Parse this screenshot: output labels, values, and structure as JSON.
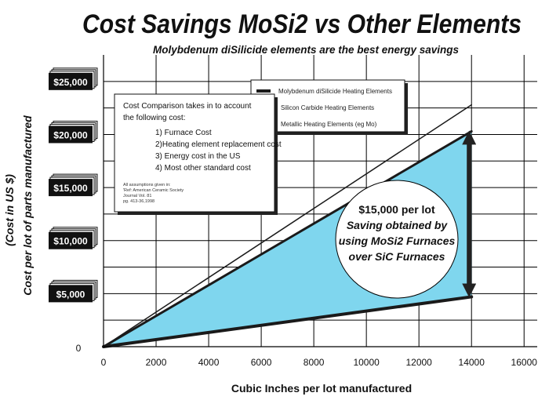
{
  "chart_data": {
    "type": "line",
    "title": "Cost Savings MoSi2 vs Other Elements",
    "subtitle": "Molybdenum diSilicide elements are the best energy savings",
    "xlabel": "Cubic Inches per lot manufactured",
    "ylabel_lines": [
      "(Cost in US $)",
      "Cost per lot of parts manufactured"
    ],
    "xlim": [
      0,
      16500
    ],
    "ylim": [
      0,
      27500
    ],
    "x_ticks": [
      0,
      2000,
      4000,
      6000,
      8000,
      10000,
      12000,
      14000,
      16000
    ],
    "x_tick_labels": [
      "0",
      "2000",
      "4000",
      "6000",
      "8000",
      "10000",
      "12000",
      "14000",
      "16000"
    ],
    "y_ticks": [
      0,
      5000,
      10000,
      15000,
      20000,
      25000
    ],
    "y_tick_labels": [
      "0",
      "$5,000",
      "$10,000",
      "$15,000",
      "$20,000",
      "$25,000"
    ],
    "grid": true,
    "legend_position": "top-right",
    "series": [
      {
        "name": "Molybdenum diSilicide Heating Elements",
        "x": [
          0,
          14000
        ],
        "y": [
          0,
          4700
        ],
        "stroke_width": 4
      },
      {
        "name": "Silicon Carbide Heating Elements",
        "x": [
          0,
          14000
        ],
        "y": [
          0,
          20300
        ],
        "stroke_width": 3
      },
      {
        "name": "Metallic Heating Elements (eg Mo)",
        "x": [
          0,
          14000
        ],
        "y": [
          0,
          22800
        ],
        "stroke_width": 1.5
      }
    ],
    "shaded_region_color": "#7fd6ee",
    "savings_callout": [
      "$15,000 per lot",
      "Saving obtained by",
      "using MoSi2 Furnaces",
      "over SiC Furnaces"
    ],
    "cost_note": {
      "lines": [
        "Cost Comparison takes in to account",
        "the following cost:"
      ],
      "items": [
        "1) Furnace Cost",
        "2)Heating element replacement cost",
        "3) Energy cost in the US",
        "4) Most other standard cost"
      ],
      "footnote": [
        "All assumptions given in:",
        "'Ref: American Ceramic Society",
        "Journal Vol. 81",
        "pg. 413-36,1998"
      ]
    }
  }
}
